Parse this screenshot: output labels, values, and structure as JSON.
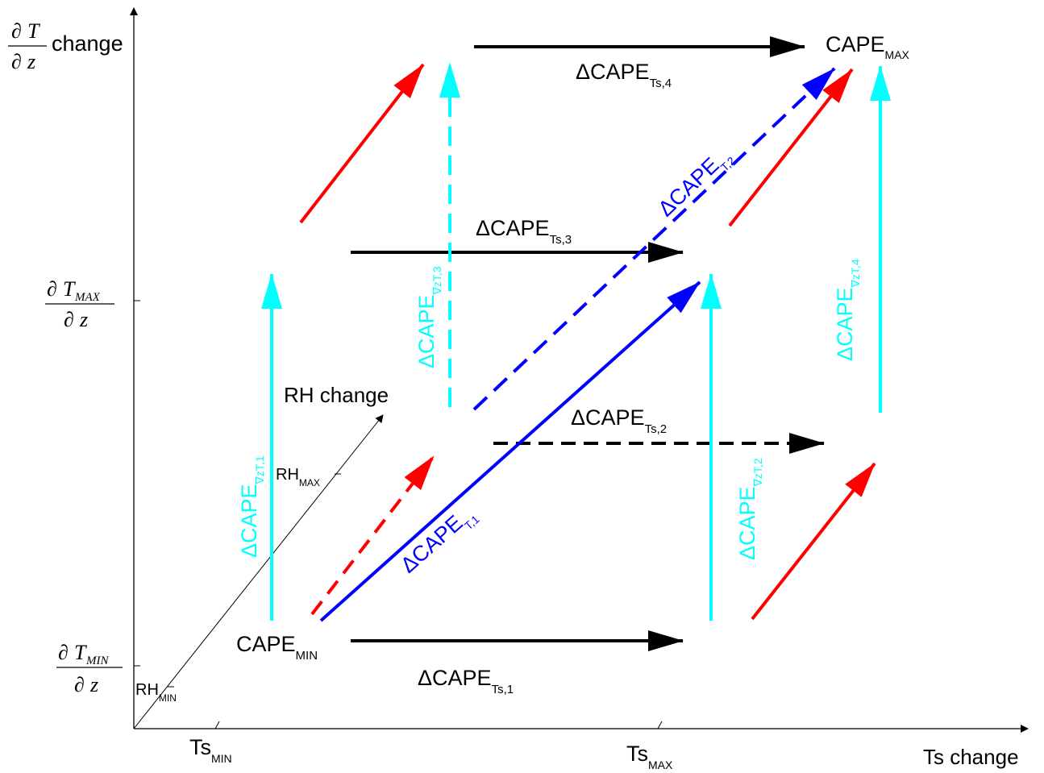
{
  "colors": {
    "ts_arrows": "#000000",
    "gradient_arrows": "#00ffff",
    "temperature_arrows": "#0000ff",
    "rh_arrows": "#ff0000",
    "axes": "#000000"
  },
  "y_axis": {
    "title_partial": "∂",
    "title_T": "T",
    "title_z": "z",
    "title_suffix": "change",
    "max_T": "T",
    "max_sub": "MAX",
    "min_T": "T",
    "min_sub": "MIN",
    "partial": "∂",
    "z": "z"
  },
  "x_axis": {
    "title": "Ts change",
    "min_main": "Ts",
    "min_sub": "MIN",
    "max_main": "Ts",
    "max_sub": "MAX"
  },
  "rh_axis": {
    "title": "RH change",
    "min_main": "RH",
    "min_sub": "MIN",
    "max_main": "RH",
    "max_sub": "MAX"
  },
  "points": {
    "cape_min_main": "CAPE",
    "cape_min_sub": "MIN",
    "cape_max_main": "CAPE",
    "cape_max_sub": "MAX"
  },
  "delta_labels": {
    "ts1_main": "ΔCAPE",
    "ts1_sub": "Ts,1",
    "ts2_main": "ΔCAPE",
    "ts2_sub": "Ts,2",
    "ts3_main": "ΔCAPE",
    "ts3_sub": "Ts,3",
    "ts4_main": "ΔCAPE",
    "ts4_sub": "Ts,4",
    "grad1_main": "ΔCAPE",
    "grad1_sub": "∇zT,1",
    "grad2_main": "ΔCAPE",
    "grad2_sub": "∇zT,2",
    "grad3_main": "ΔCAPE",
    "grad3_sub": "∇zT,3",
    "grad4_main": "ΔCAPE",
    "grad4_sub": "∇zT,4",
    "t1_main": "ΔCAPE",
    "t1_sub": "T,1",
    "t2_main": "ΔCAPE",
    "t2_sub": "T,2"
  }
}
